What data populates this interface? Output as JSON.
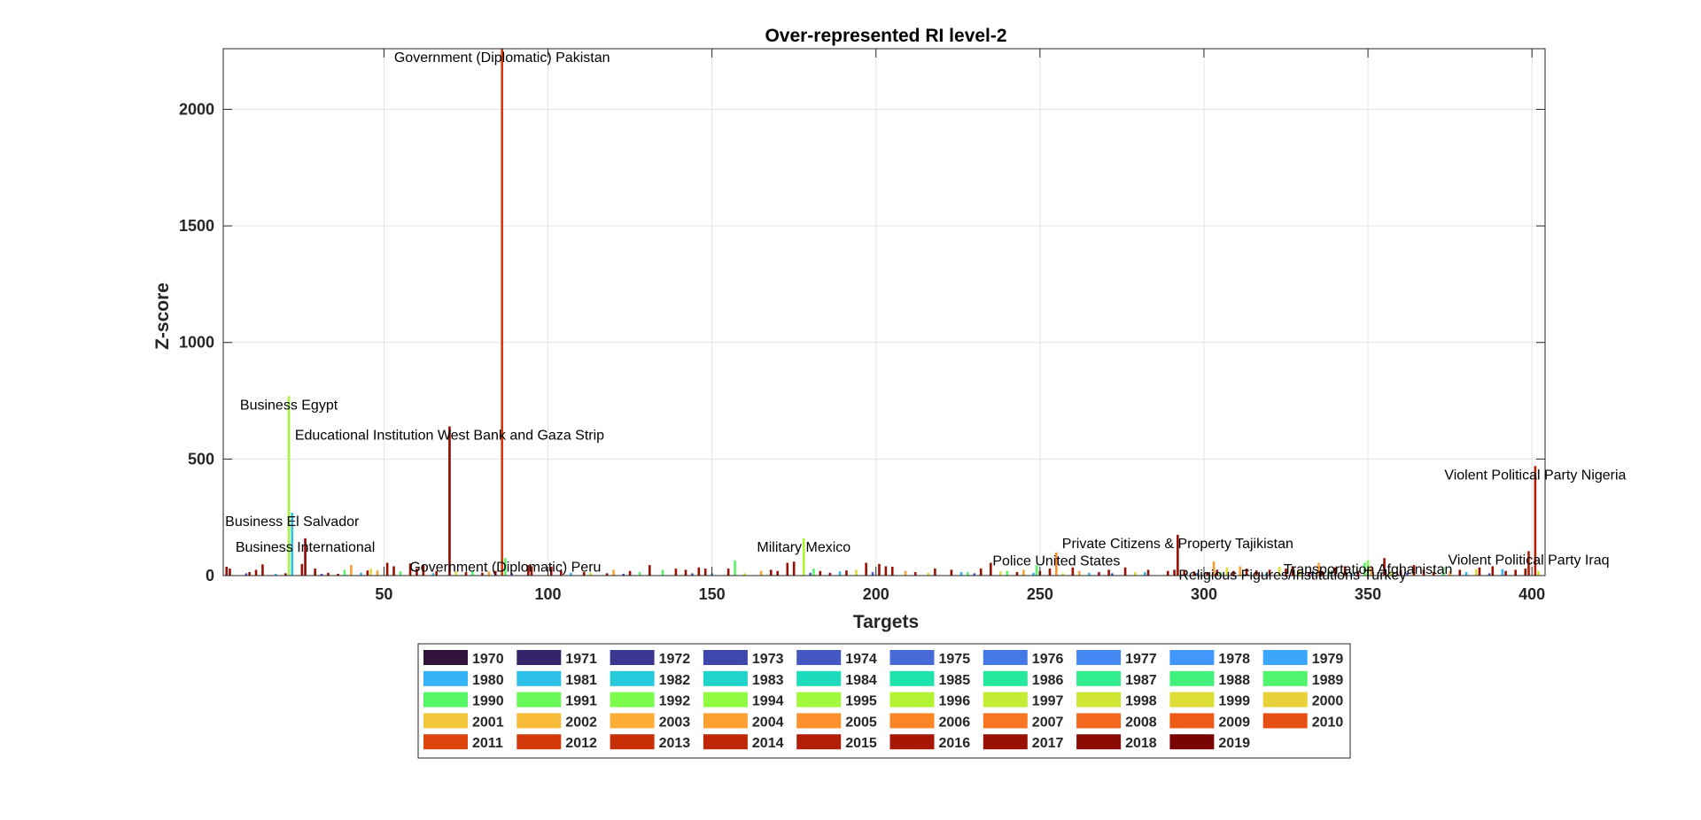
{
  "chart_data": {
    "type": "bar",
    "title": "Over-represented RI level-2",
    "xlabel": "Targets",
    "ylabel": "Z-score",
    "xlim": [
      1,
      404
    ],
    "ylim": [
      0,
      2260
    ],
    "xticks": [
      50,
      100,
      150,
      200,
      250,
      300,
      350,
      400
    ],
    "yticks": [
      0,
      500,
      1000,
      1500,
      2000
    ],
    "grid": true,
    "legend_position": "bottom",
    "legend_columns": 10,
    "legend": [
      {
        "label": "1970",
        "color": "#30123b"
      },
      {
        "label": "1971",
        "color": "#36246a"
      },
      {
        "label": "1972",
        "color": "#3b3690"
      },
      {
        "label": "1973",
        "color": "#3e47ab"
      },
      {
        "label": "1974",
        "color": "#4458c4"
      },
      {
        "label": "1975",
        "color": "#466ad8"
      },
      {
        "label": "1976",
        "color": "#4679e8"
      },
      {
        "label": "1977",
        "color": "#4589f4"
      },
      {
        "label": "1978",
        "color": "#4297fb"
      },
      {
        "label": "1979",
        "color": "#3ca6fd"
      },
      {
        "label": "1980",
        "color": "#35b4f5"
      },
      {
        "label": "1981",
        "color": "#2cc0e8"
      },
      {
        "label": "1982",
        "color": "#25cbdb"
      },
      {
        "label": "1983",
        "color": "#20d4cc"
      },
      {
        "label": "1984",
        "color": "#1ddcbd"
      },
      {
        "label": "1985",
        "color": "#1fe3ad"
      },
      {
        "label": "1986",
        "color": "#26e89c"
      },
      {
        "label": "1987",
        "color": "#32ed8c"
      },
      {
        "label": "1988",
        "color": "#41f17b"
      },
      {
        "label": "1989",
        "color": "#4ff56c"
      },
      {
        "label": "1990",
        "color": "#56f767"
      },
      {
        "label": "1991",
        "color": "#68f958"
      },
      {
        "label": "1992",
        "color": "#7bfb4b"
      },
      {
        "label": "1994",
        "color": "#90fb41"
      },
      {
        "label": "1995",
        "color": "#a2f83a"
      },
      {
        "label": "1996",
        "color": "#b2f334"
      },
      {
        "label": "1997",
        "color": "#c3ec34"
      },
      {
        "label": "1998",
        "color": "#d1e535"
      },
      {
        "label": "1999",
        "color": "#dedc37"
      },
      {
        "label": "2000",
        "color": "#e9d139"
      },
      {
        "label": "2001",
        "color": "#f1c63a"
      },
      {
        "label": "2002",
        "color": "#f7ba39"
      },
      {
        "label": "2003",
        "color": "#fbad36"
      },
      {
        "label": "2004",
        "color": "#fda032"
      },
      {
        "label": "2005",
        "color": "#fd922c"
      },
      {
        "label": "2006",
        "color": "#fb8427"
      },
      {
        "label": "2007",
        "color": "#f87621"
      },
      {
        "label": "2008",
        "color": "#f3681c"
      },
      {
        "label": "2009",
        "color": "#ed5b17"
      },
      {
        "label": "2010",
        "color": "#e64f12"
      },
      {
        "label": "2011",
        "color": "#de440e"
      },
      {
        "label": "2012",
        "color": "#d53a0b"
      },
      {
        "label": "2013",
        "color": "#ca3008"
      },
      {
        "label": "2014",
        "color": "#bf2706"
      },
      {
        "label": "2015",
        "color": "#b31f05"
      },
      {
        "label": "2016",
        "color": "#a61704"
      },
      {
        "label": "2017",
        "color": "#991103"
      },
      {
        "label": "2018",
        "color": "#8b0b03"
      },
      {
        "label": "2019",
        "color": "#7a0403"
      }
    ],
    "annotations": [
      {
        "text": "Government (Diplomatic) Pakistan",
        "x": 86,
        "y": 2260
      },
      {
        "text": "Business Egypt",
        "x": 21,
        "y": 770
      },
      {
        "text": "Educational Institution West Bank and Gaza Strip",
        "x": 70,
        "y": 640
      },
      {
        "text": "Business El Salvador",
        "x": 22,
        "y": 270
      },
      {
        "text": "Business International",
        "x": 26,
        "y": 160
      },
      {
        "text": "Government (Diplomatic) Peru",
        "x": 87,
        "y": 75
      },
      {
        "text": "Military Mexico",
        "x": 178,
        "y": 160
      },
      {
        "text": "Police United States",
        "x": 255,
        "y": 100
      },
      {
        "text": "Private Citizens & Property Tajikistan",
        "x": 292,
        "y": 175
      },
      {
        "text": "Religious Figures/Institutions Turkey",
        "x": 327,
        "y": 40
      },
      {
        "text": "Transportation Afghanistan",
        "x": 350,
        "y": 65
      },
      {
        "text": "Violent Political Party Iraq",
        "x": 399,
        "y": 105
      },
      {
        "text": "Violent Political Party Nigeria",
        "x": 401,
        "y": 470
      }
    ],
    "series": [
      {
        "color": "#d53a0b",
        "points": [
          [
            86,
            2260
          ]
        ]
      },
      {
        "color": "#a2f83a",
        "points": [
          [
            21,
            770
          ]
        ]
      },
      {
        "color": "#8b0b03",
        "points": [
          [
            70,
            640
          ]
        ]
      },
      {
        "color": "#2cc0e8",
        "points": [
          [
            22,
            270
          ]
        ]
      },
      {
        "color": "#8b0b03",
        "points": [
          [
            26,
            160
          ]
        ]
      },
      {
        "color": "#56f767",
        "points": [
          [
            87,
            75
          ]
        ]
      },
      {
        "color": "#b2f334",
        "points": [
          [
            178,
            160
          ]
        ]
      },
      {
        "color": "#fd922c",
        "points": [
          [
            255,
            100
          ]
        ]
      },
      {
        "color": "#991103",
        "points": [
          [
            292,
            175
          ]
        ]
      },
      {
        "color": "#a61704",
        "points": [
          [
            327,
            40
          ]
        ]
      },
      {
        "color": "#7bfb4b",
        "points": [
          [
            350,
            65
          ]
        ]
      },
      {
        "color": "#b31f05",
        "points": [
          [
            399,
            105
          ]
        ]
      },
      {
        "color": "#b31f05",
        "points": [
          [
            401,
            470
          ]
        ]
      },
      {
        "color": "#991103",
        "points": [
          [
            2,
            38
          ],
          [
            3,
            30
          ],
          [
            9,
            15
          ],
          [
            11,
            25
          ],
          [
            13,
            48
          ],
          [
            20,
            10
          ],
          [
            25,
            50
          ],
          [
            29,
            30
          ],
          [
            33,
            12
          ],
          [
            36,
            8
          ],
          [
            45,
            22
          ],
          [
            51,
            55
          ],
          [
            53,
            40
          ],
          [
            58,
            52
          ],
          [
            60,
            30
          ],
          [
            62,
            45
          ],
          [
            66,
            20
          ],
          [
            75,
            15
          ],
          [
            80,
            12
          ],
          [
            84,
            20
          ],
          [
            94,
            45
          ],
          [
            95,
            40
          ],
          [
            101,
            38
          ],
          [
            104,
            20
          ],
          [
            111,
            15
          ],
          [
            118,
            10
          ],
          [
            125,
            20
          ],
          [
            131,
            45
          ],
          [
            139,
            30
          ],
          [
            142,
            25
          ],
          [
            146,
            35
          ],
          [
            148,
            30
          ],
          [
            155,
            30
          ],
          [
            168,
            25
          ],
          [
            170,
            20
          ],
          [
            173,
            55
          ],
          [
            175,
            60
          ],
          [
            183,
            20
          ],
          [
            186,
            12
          ],
          [
            191,
            22
          ],
          [
            197,
            55
          ],
          [
            201,
            50
          ],
          [
            203,
            40
          ],
          [
            205,
            38
          ],
          [
            212,
            15
          ],
          [
            218,
            30
          ],
          [
            223,
            25
          ],
          [
            232,
            30
          ],
          [
            235,
            55
          ],
          [
            243,
            15
          ],
          [
            250,
            20
          ],
          [
            253,
            30
          ],
          [
            260,
            35
          ],
          [
            268,
            15
          ],
          [
            271,
            25
          ],
          [
            276,
            35
          ],
          [
            283,
            25
          ],
          [
            289,
            20
          ],
          [
            291,
            25
          ],
          [
            294,
            20
          ],
          [
            297,
            18
          ],
          [
            301,
            15
          ],
          [
            304,
            25
          ],
          [
            309,
            20
          ],
          [
            313,
            30
          ],
          [
            316,
            22
          ],
          [
            320,
            25
          ],
          [
            325,
            30
          ],
          [
            332,
            15
          ],
          [
            336,
            20
          ],
          [
            340,
            35
          ],
          [
            343,
            40
          ],
          [
            347,
            20
          ],
          [
            355,
            75
          ],
          [
            360,
            25
          ],
          [
            364,
            45
          ],
          [
            367,
            25
          ],
          [
            370,
            15
          ],
          [
            378,
            25
          ],
          [
            384,
            35
          ],
          [
            388,
            40
          ],
          [
            392,
            20
          ],
          [
            395,
            25
          ],
          [
            398,
            30
          ]
        ]
      },
      {
        "color": "#fda032",
        "points": [
          [
            40,
            45
          ],
          [
            48,
            22
          ],
          [
            82,
            18
          ],
          [
            120,
            25
          ],
          [
            165,
            20
          ],
          [
            209,
            20
          ],
          [
            245,
            25
          ],
          [
            262,
            20
          ],
          [
            303,
            60
          ],
          [
            311,
            40
          ],
          [
            335,
            55
          ],
          [
            351,
            38
          ],
          [
            375,
            20
          ]
        ]
      },
      {
        "color": "#56f767",
        "points": [
          [
            38,
            25
          ],
          [
            55,
            18
          ],
          [
            77,
            20
          ],
          [
            128,
            15
          ],
          [
            135,
            25
          ],
          [
            157,
            65
          ],
          [
            181,
            30
          ],
          [
            228,
            15
          ],
          [
            240,
            20
          ],
          [
            249,
            45
          ],
          [
            305,
            15
          ],
          [
            338,
            22
          ],
          [
            349,
            55
          ],
          [
            373,
            35
          ]
        ]
      },
      {
        "color": "#35b4f5",
        "points": [
          [
            17,
            8
          ],
          [
            43,
            12
          ],
          [
            65,
            10
          ],
          [
            107,
            12
          ],
          [
            150,
            10
          ],
          [
            189,
            18
          ],
          [
            226,
            15
          ],
          [
            248,
            12
          ],
          [
            265,
            12
          ],
          [
            282,
            15
          ],
          [
            319,
            10
          ],
          [
            345,
            12
          ],
          [
            380,
            15
          ],
          [
            391,
            28
          ]
        ]
      },
      {
        "color": "#dedc37",
        "points": [
          [
            46,
            30
          ],
          [
            72,
            18
          ],
          [
            113,
            12
          ],
          [
            160,
            10
          ],
          [
            194,
            25
          ],
          [
            216,
            12
          ],
          [
            238,
            18
          ],
          [
            257,
            10
          ],
          [
            279,
            15
          ],
          [
            307,
            35
          ],
          [
            323,
            38
          ],
          [
            329,
            25
          ],
          [
            357,
            20
          ],
          [
            383,
            28
          ],
          [
            402,
            20
          ]
        ]
      },
      {
        "color": "#4458c4",
        "points": [
          [
            8,
            10
          ],
          [
            31,
            8
          ],
          [
            89,
            10
          ],
          [
            123,
            8
          ],
          [
            144,
            10
          ],
          [
            180,
            12
          ],
          [
            199,
            15
          ],
          [
            230,
            10
          ],
          [
            272,
            10
          ],
          [
            298,
            12
          ],
          [
            333,
            10
          ],
          [
            362,
            12
          ],
          [
            387,
            10
          ]
        ]
      }
    ]
  }
}
